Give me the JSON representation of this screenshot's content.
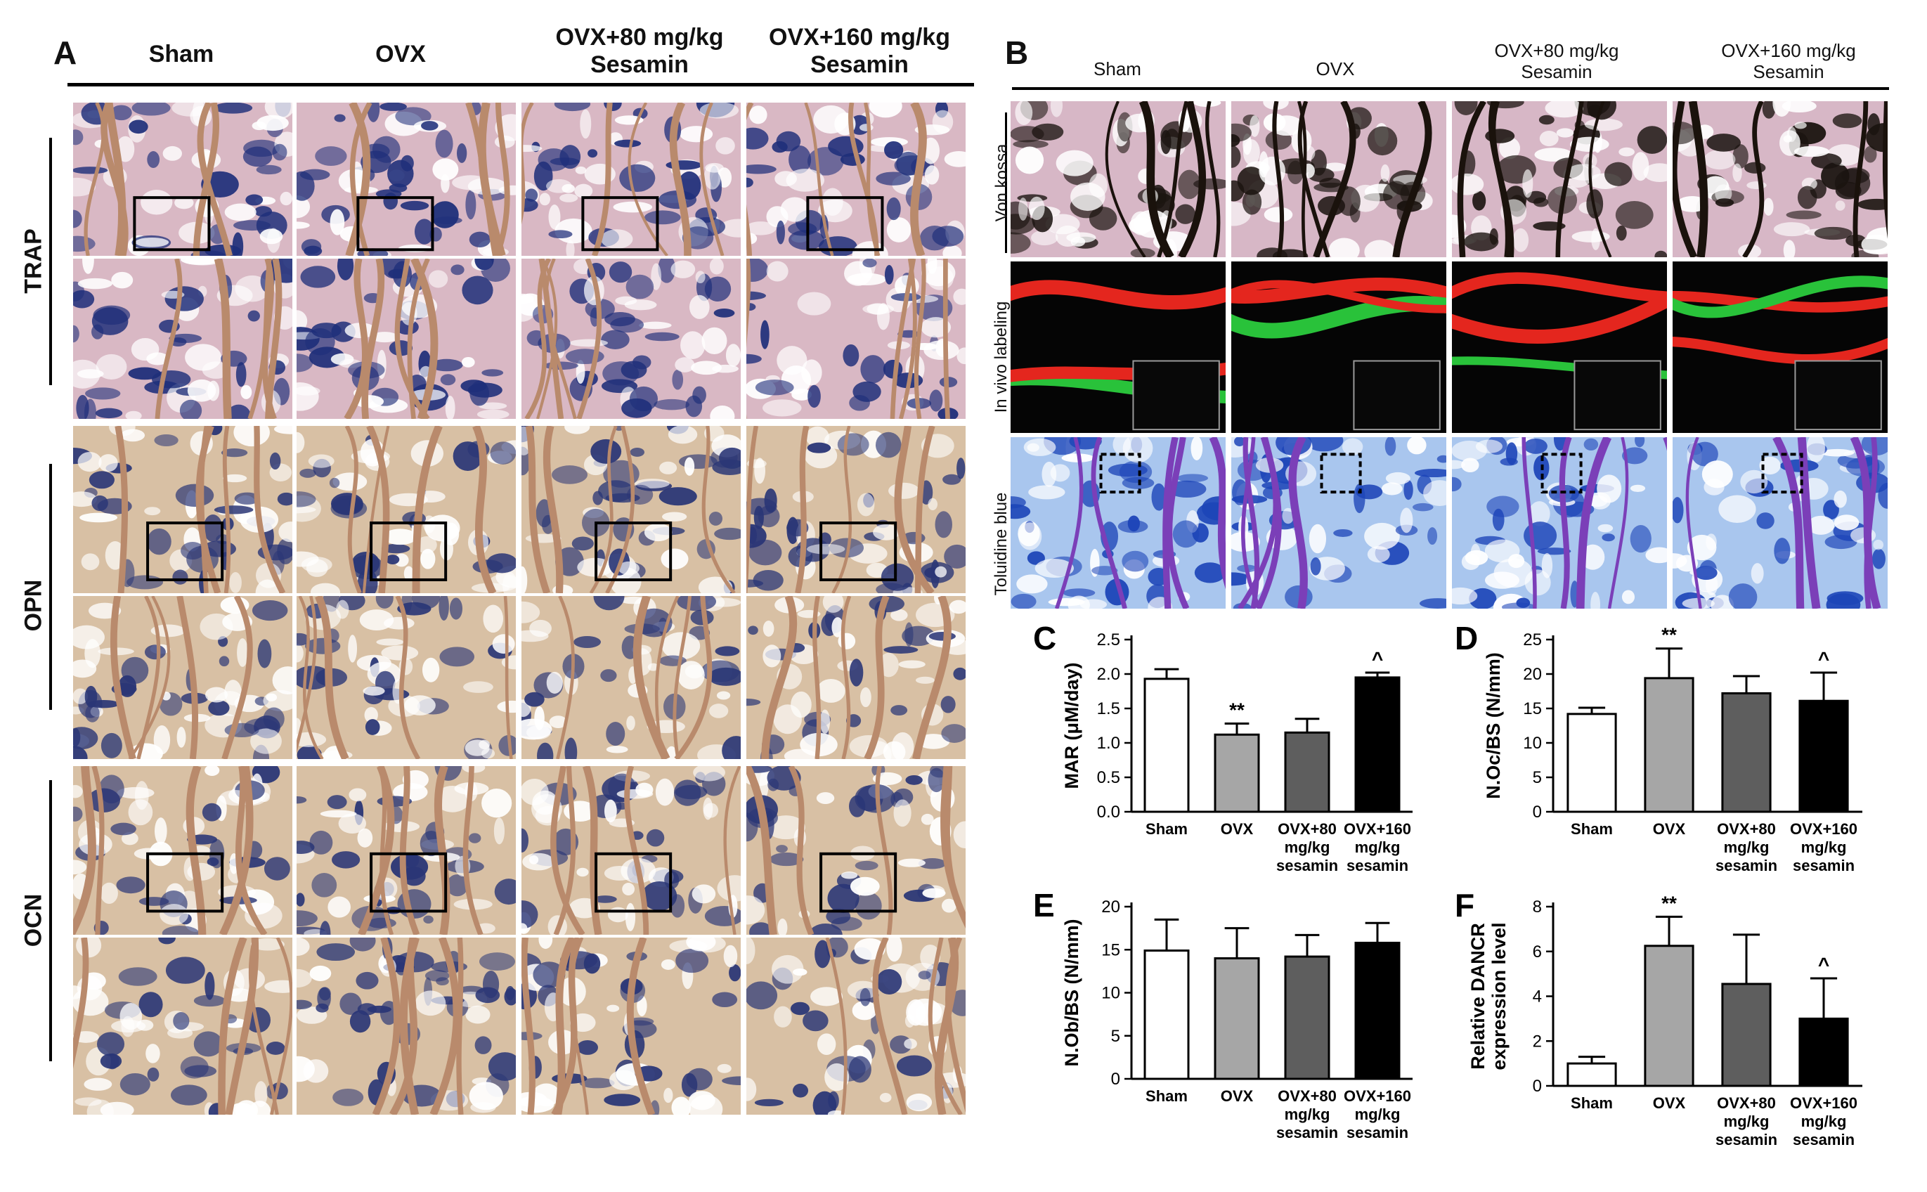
{
  "panelA": {
    "label": "A",
    "columns": [
      "Sham",
      "OVX",
      "OVX+80 mg/kg\nSesamin",
      "OVX+160 mg/kg\nSesamin"
    ],
    "rows": [
      "TRAP",
      "OPN",
      "OCN"
    ]
  },
  "panelB": {
    "label": "B",
    "columns": [
      "Sham",
      "OVX",
      "OVX+80 mg/kg\nSesamin",
      "OVX+160 mg/kg\nSesamin"
    ],
    "rows": [
      "Von kossa",
      "In vivo labeling",
      "Toluidine blue"
    ]
  },
  "colors": {
    "trap_bg": "#d9b8c4",
    "ihc_bg": "#d8c0a4",
    "vonkossa_bg": "#d7b7c6",
    "fluor_bg": "#050505",
    "toluidine_bg": "#a9c6ee"
  },
  "chart_data": [
    {
      "id": "C",
      "type": "bar",
      "categories": [
        "Sham",
        "OVX",
        "OVX+80\nmg/kg\nsesamin",
        "OVX+160\nmg/kg\nsesamin"
      ],
      "values": [
        1.93,
        1.12,
        1.15,
        1.95
      ],
      "errors": [
        0.14,
        0.16,
        0.2,
        0.07
      ],
      "markers": [
        "",
        "**",
        "",
        "^"
      ],
      "fills": [
        "#ffffff",
        "#a6a6a6",
        "#5e5e5e",
        "#000000"
      ],
      "ylabel": "MAR (μM/day)",
      "ylim": [
        0,
        2.5
      ],
      "yticks": [
        0.0,
        0.5,
        1.0,
        1.5,
        2.0,
        2.5
      ],
      "tick_decimals": 1
    },
    {
      "id": "D",
      "type": "bar",
      "categories": [
        "Sham",
        "OVX",
        "OVX+80\nmg/kg\nsesamin",
        "OVX+160\nmg/kg\nsesamin"
      ],
      "values": [
        14.2,
        19.4,
        17.2,
        16.1
      ],
      "errors": [
        0.9,
        4.3,
        2.5,
        4.1
      ],
      "markers": [
        "",
        "**",
        "",
        "^"
      ],
      "fills": [
        "#ffffff",
        "#a6a6a6",
        "#5e5e5e",
        "#000000"
      ],
      "ylabel": "N.Oc/BS (N/mm)",
      "ylim": [
        0,
        25
      ],
      "yticks": [
        0,
        5,
        10,
        15,
        20,
        25
      ],
      "tick_decimals": 0
    },
    {
      "id": "E",
      "type": "bar",
      "categories": [
        "Sham",
        "OVX",
        "OVX+80\nmg/kg\nsesamin",
        "OVX+160\nmg/kg\nsesamin"
      ],
      "values": [
        14.9,
        14.0,
        14.2,
        15.8
      ],
      "errors": [
        3.6,
        3.5,
        2.5,
        2.3
      ],
      "markers": [
        "",
        "",
        "",
        ""
      ],
      "fills": [
        "#ffffff",
        "#a6a6a6",
        "#5e5e5e",
        "#000000"
      ],
      "ylabel": "N.Ob/BS (N/mm)",
      "ylim": [
        0,
        20
      ],
      "yticks": [
        0,
        5,
        10,
        15,
        20
      ],
      "tick_decimals": 0
    },
    {
      "id": "F",
      "type": "bar",
      "categories": [
        "Sham",
        "OVX",
        "OVX+80\nmg/kg\nsesamin",
        "OVX+160\nmg/kg\nsesamin"
      ],
      "values": [
        1.0,
        6.25,
        4.55,
        3.0
      ],
      "errors": [
        0.3,
        1.3,
        2.2,
        1.8
      ],
      "markers": [
        "",
        "**",
        "",
        "^"
      ],
      "fills": [
        "#ffffff",
        "#a6a6a6",
        "#5e5e5e",
        "#000000"
      ],
      "ylabel": "Relative DANCR\nexpression level",
      "ylim": [
        0,
        8
      ],
      "yticks": [
        0,
        2,
        4,
        6,
        8
      ],
      "tick_decimals": 0
    }
  ]
}
